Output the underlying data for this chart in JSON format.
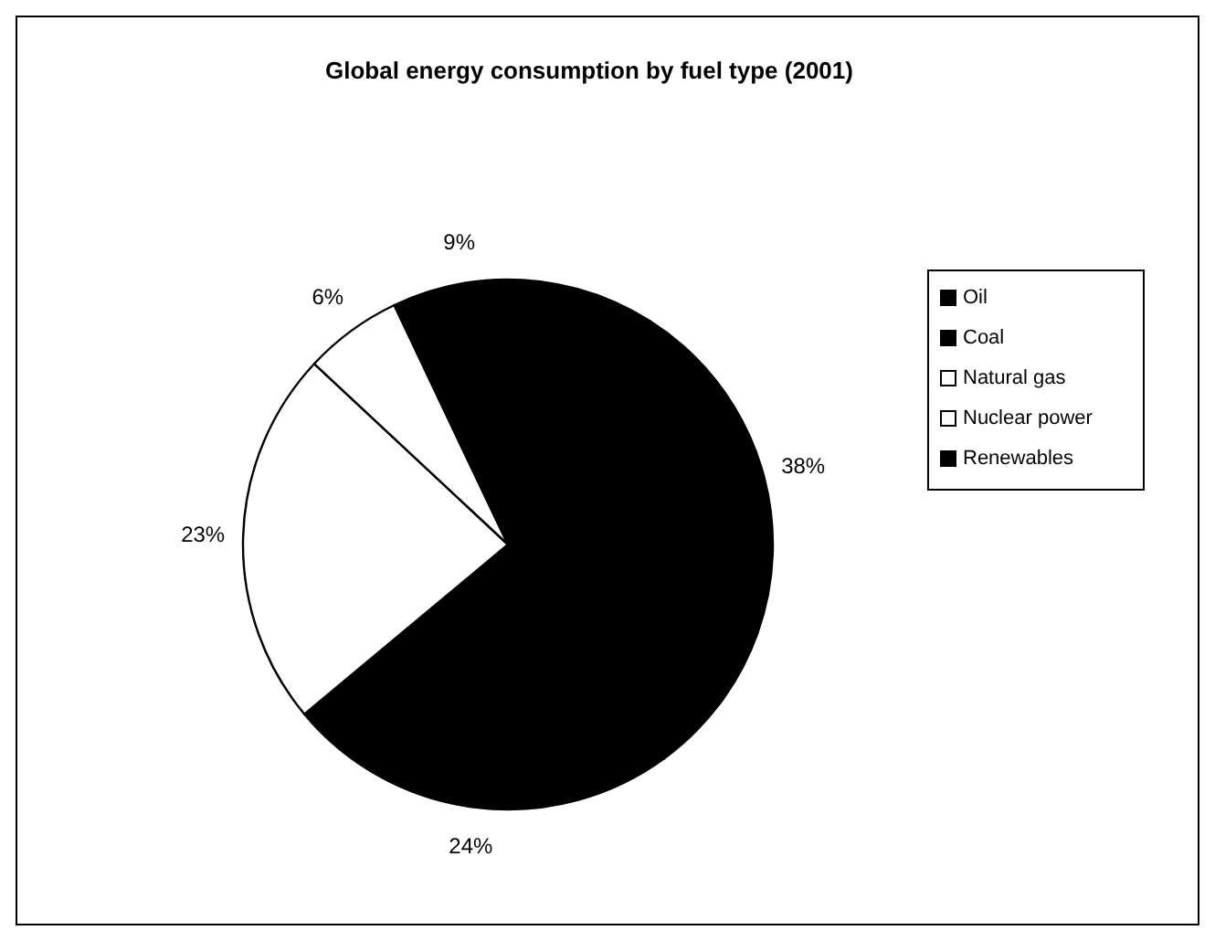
{
  "chart_data": {
    "type": "pie",
    "title": "Global energy consumption by fuel type (2001)",
    "categories": [
      "Oil",
      "Coal",
      "Natural gas",
      "Nuclear power",
      "Renewables"
    ],
    "values": [
      38,
      24,
      23,
      6,
      9
    ],
    "colors": [
      "#000000",
      "#000000",
      "#ffffff",
      "#ffffff",
      "#000000"
    ],
    "value_labels": [
      "38%",
      "24%",
      "23%",
      "6%",
      "9%"
    ],
    "legend": "right"
  }
}
